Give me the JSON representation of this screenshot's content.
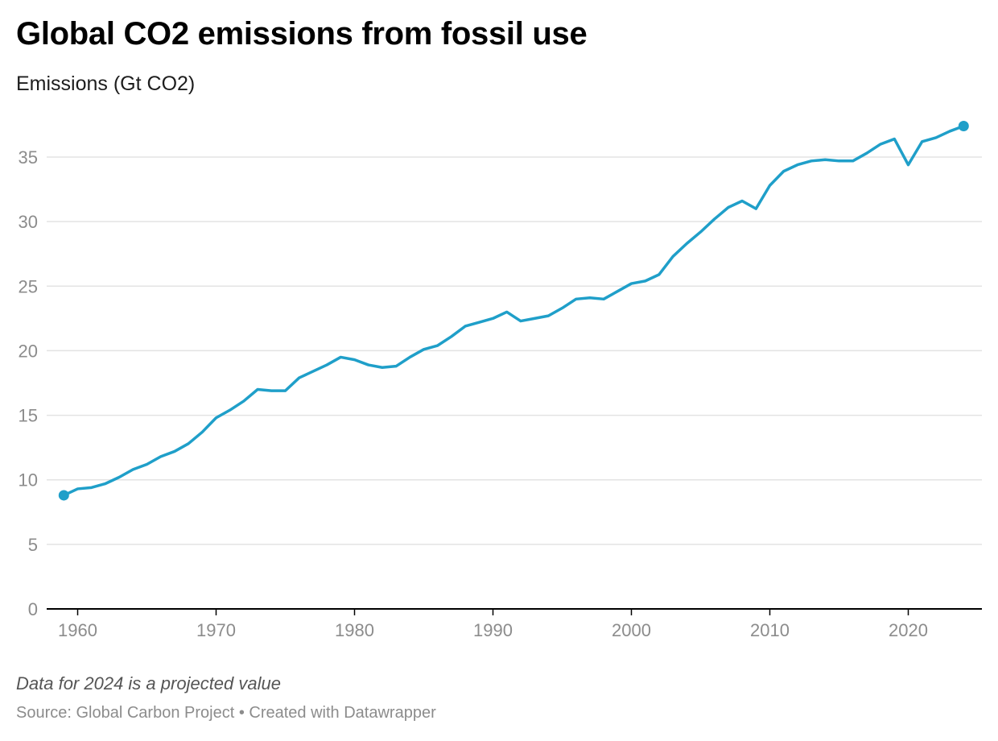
{
  "header": {
    "title": "Global CO2 emissions from fossil use",
    "subtitle": "Emissions (Gt CO2)"
  },
  "footer": {
    "note": "Data for 2024 is a projected value",
    "source": "Source: Global Carbon Project",
    "separator": "•",
    "credit": "Created with Datawrapper"
  },
  "colors": {
    "line": "#1f9fc9",
    "grid": "#e3e3e3",
    "axis": "#000000",
    "tick_text": "#8c8c8c"
  },
  "chart_data": {
    "type": "line",
    "title": "Global CO2 emissions from fossil use",
    "ylabel": "Emissions (Gt CO2)",
    "xlabel": "",
    "xlim": [
      1959,
      2024
    ],
    "ylim": [
      0,
      37.5
    ],
    "x_ticks": [
      1960,
      1970,
      1980,
      1990,
      2000,
      2010,
      2020
    ],
    "y_ticks": [
      0,
      5,
      10,
      15,
      20,
      25,
      30,
      35
    ],
    "grid": true,
    "legend": "none",
    "endpoint_markers": true,
    "series": [
      {
        "x": [
          1959,
          1960,
          1961,
          1962,
          1963,
          1964,
          1965,
          1966,
          1967,
          1968,
          1969,
          1970,
          1971,
          1972,
          1973,
          1974,
          1975,
          1976,
          1977,
          1978,
          1979,
          1980,
          1981,
          1982,
          1983,
          1984,
          1985,
          1986,
          1987,
          1988,
          1989,
          1990,
          1991,
          1992,
          1993,
          1994,
          1995,
          1996,
          1997,
          1998,
          1999,
          2000,
          2001,
          2002,
          2003,
          2004,
          2005,
          2006,
          2007,
          2008,
          2009,
          2010,
          2011,
          2012,
          2013,
          2014,
          2015,
          2016,
          2017,
          2018,
          2019,
          2020,
          2021,
          2022,
          2023,
          2024
        ],
        "values": [
          8.8,
          9.3,
          9.4,
          9.7,
          10.2,
          10.8,
          11.2,
          11.8,
          12.2,
          12.8,
          13.7,
          14.8,
          15.4,
          16.1,
          17.0,
          16.9,
          16.9,
          17.9,
          18.4,
          18.9,
          19.5,
          19.3,
          18.9,
          18.7,
          18.8,
          19.5,
          20.1,
          20.4,
          21.1,
          21.9,
          22.2,
          22.5,
          23.0,
          22.3,
          22.5,
          22.7,
          23.3,
          24.0,
          24.1,
          24.0,
          24.6,
          25.2,
          25.4,
          25.9,
          27.3,
          28.3,
          29.2,
          30.2,
          31.1,
          31.6,
          31.0,
          32.8,
          33.9,
          34.4,
          34.7,
          34.8,
          34.7,
          34.7,
          35.3,
          36.0,
          36.4,
          34.4,
          36.2,
          36.5,
          37.0,
          37.4
        ]
      }
    ]
  }
}
